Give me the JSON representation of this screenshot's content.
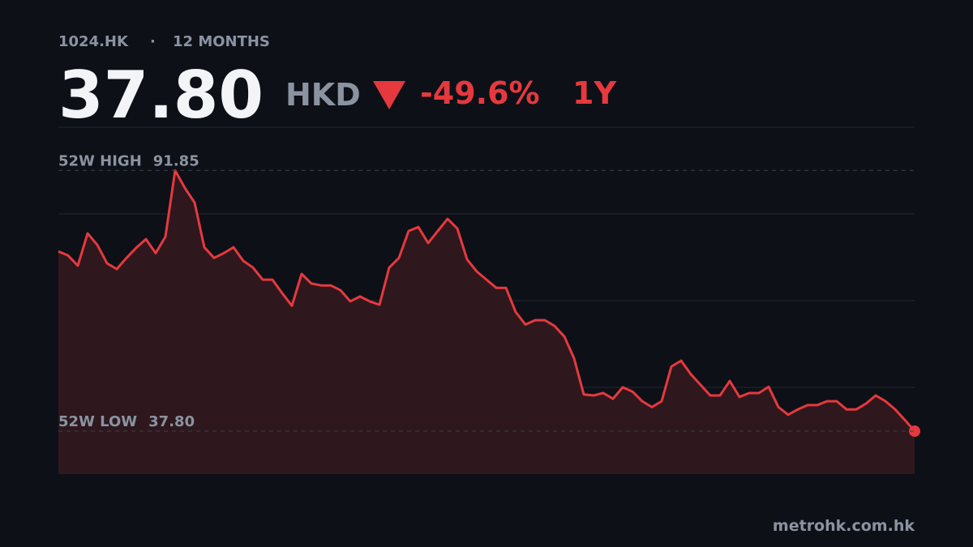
{
  "header": {
    "ticker": "1024.HK",
    "separator": "·",
    "period": "12 MONTHS",
    "price": "37.80",
    "currency": "HKD",
    "change": "-49.6%",
    "range": "1Y"
  },
  "footer": {
    "source": "metrohk.com.hk"
  },
  "chart_data": {
    "type": "area",
    "color": "#e5393e",
    "fill": "#2e181d",
    "ylim": [
      28.9,
      100.8
    ],
    "high": {
      "name": "52W HIGH",
      "value": 91.85
    },
    "low": {
      "name": "52W LOW",
      "value": 37.8,
      "value_label": "37.80"
    },
    "values": [
      75.07,
      74.2,
      72.1,
      78.8,
      76.4,
      72.6,
      71.4,
      73.7,
      75.8,
      77.6,
      74.7,
      78.1,
      91.85,
      88.2,
      85.2,
      75.9,
      73.7,
      74.7,
      75.9,
      73.1,
      71.7,
      69.2,
      69.2,
      66.4,
      63.8,
      70.4,
      68.4,
      68.0,
      68.0,
      67.0,
      64.7,
      65.7,
      64.7,
      64.0,
      71.7,
      73.7,
      79.3,
      80.1,
      76.8,
      79.3,
      81.8,
      79.8,
      73.4,
      70.9,
      69.2,
      67.5,
      67.5,
      62.5,
      59.9,
      60.8,
      60.8,
      59.6,
      57.4,
      52.9,
      45.4,
      45.2,
      45.7,
      44.5,
      46.9,
      46.0,
      44.0,
      42.8,
      44.0,
      51.2,
      52.4,
      49.6,
      47.4,
      45.2,
      45.2,
      48.2,
      44.9,
      45.7,
      45.7,
      47.0,
      42.8,
      41.2,
      42.3,
      43.2,
      43.2,
      44.0,
      44.0,
      42.3,
      42.3,
      43.5,
      45.2,
      44.0,
      42.3,
      40.1,
      37.8
    ]
  }
}
